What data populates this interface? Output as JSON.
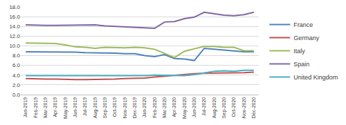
{
  "chart_data": {
    "type": "line",
    "categories": [
      "Jan-2019",
      "Feb-2019",
      "Mar-2019",
      "Apr-2019",
      "May-2019",
      "Jun-2019",
      "Jul-2019",
      "Aug-2019",
      "Sep-2019",
      "Oct-2019",
      "Nov-2019",
      "Dec-2019",
      "Jan-2020",
      "Feb-2020",
      "Mar-2020",
      "Apr-2020",
      "May-2020",
      "Jun-2020",
      "Jul-2020",
      "Aug-2020",
      "Sep-2020",
      "Oct-2020",
      "Nov-2020",
      "Dec-2020"
    ],
    "series": [
      {
        "name": "France",
        "color": "#4f81bd",
        "values": [
          8.8,
          8.8,
          8.8,
          8.7,
          8.7,
          8.7,
          8.6,
          8.6,
          8.6,
          8.5,
          8.4,
          8.4,
          8.0,
          7.8,
          8.2,
          7.4,
          7.3,
          7.0,
          9.5,
          9.3,
          9.1,
          9.0,
          8.8,
          8.8
        ]
      },
      {
        "name": "Germany",
        "color": "#c0504d",
        "values": [
          3.3,
          3.2,
          3.2,
          3.2,
          3.1,
          3.1,
          3.1,
          3.1,
          3.2,
          3.2,
          3.3,
          3.3,
          3.4,
          3.6,
          3.8,
          4.0,
          4.2,
          4.3,
          4.4,
          4.4,
          4.5,
          4.5,
          4.5,
          4.6
        ]
      },
      {
        "name": "Italy",
        "color": "#9bbb59",
        "values": [
          10.6,
          10.6,
          10.6,
          10.5,
          10.2,
          9.8,
          9.7,
          9.5,
          9.7,
          9.6,
          9.6,
          9.7,
          9.6,
          9.3,
          8.4,
          7.6,
          8.9,
          9.4,
          9.9,
          9.9,
          9.7,
          9.7,
          9.0,
          9.0
        ]
      },
      {
        "name": "Spain",
        "color": "#8064a2",
        "values": [
          14.3,
          14.2,
          14.2,
          14.2,
          14.2,
          14.2,
          14.3,
          14.3,
          14.1,
          14.0,
          13.8,
          13.7,
          13.6,
          13.6,
          14.9,
          15.0,
          15.6,
          15.9,
          16.9,
          16.6,
          16.3,
          16.2,
          16.4,
          16.9
        ]
      },
      {
        "name": "United Kingdom",
        "color": "#4bacc6",
        "values": [
          3.9,
          3.9,
          3.8,
          3.8,
          3.8,
          3.8,
          3.9,
          3.9,
          3.8,
          3.8,
          3.8,
          3.8,
          3.9,
          4.0,
          4.0,
          4.0,
          3.9,
          4.1,
          4.5,
          4.8,
          4.9,
          4.8,
          5.0,
          5.0
        ]
      }
    ],
    "ylim": [
      0,
      18
    ],
    "yticks": [
      {
        "value": 0,
        "label": "0.0"
      },
      {
        "value": 2,
        "label": "2.0"
      },
      {
        "value": 4,
        "label": "4.0"
      },
      {
        "value": 6,
        "label": "6.0"
      },
      {
        "value": 8,
        "label": "8.0"
      },
      {
        "value": 10,
        "label": "10.0"
      },
      {
        "value": 12,
        "label": "12.0"
      },
      {
        "value": 14,
        "label": "14.0"
      },
      {
        "value": 16,
        "label": "16.0"
      },
      {
        "value": 18,
        "label": "18.0"
      }
    ],
    "grid": true,
    "legend": "right"
  }
}
